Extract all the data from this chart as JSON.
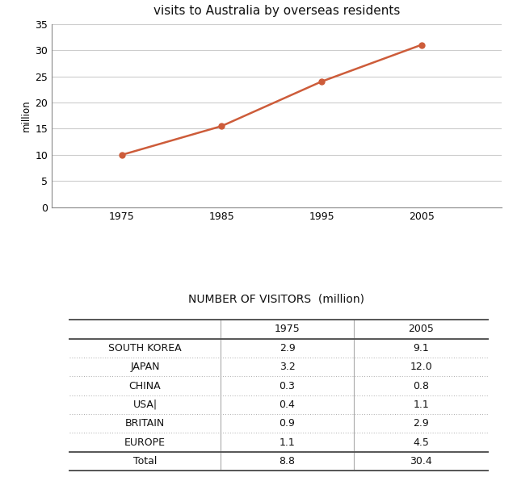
{
  "chart_title": "visits to Australia by overseas residents",
  "table_title": "NUMBER OF VISITORS  (million)",
  "line_x": [
    1975,
    1985,
    1995,
    2005
  ],
  "line_y": [
    10,
    15.5,
    24,
    31
  ],
  "line_color": "#CD5C3A",
  "marker": "o",
  "marker_size": 5,
  "ylim": [
    0,
    35
  ],
  "yticks": [
    0,
    5,
    10,
    15,
    20,
    25,
    30,
    35
  ],
  "xticks": [
    1975,
    1985,
    1995,
    2005
  ],
  "ylabel": "million",
  "table_col_labels": [
    "",
    "1975",
    "2005"
  ],
  "table_rows": [
    [
      "SOUTH KOREA",
      "2.9",
      "9.1"
    ],
    [
      "JAPAN",
      "3.2",
      "12.0"
    ],
    [
      "CHINA",
      "0.3",
      "0.8"
    ],
    [
      "USA|",
      "0.4",
      "1.1"
    ],
    [
      "BRITAIN",
      "0.9",
      "2.9"
    ],
    [
      "EUROPE",
      "1.1",
      "4.5"
    ],
    [
      "Total",
      "8.8",
      "30.4"
    ]
  ],
  "bg_color": "#ffffff",
  "plot_bg_color": "#ffffff",
  "grid_color": "#cccccc",
  "xlim": [
    1968,
    2013
  ]
}
